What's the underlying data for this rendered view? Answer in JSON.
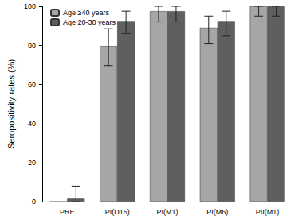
{
  "chart_data": {
    "type": "bar",
    "y_label": "Seropositivity rates (%)",
    "categories": [
      "PRE",
      "PI(D15)",
      "PI(M1)",
      "PI(M6)",
      "PII(M1)"
    ],
    "series": [
      {
        "name": "Age ≥40 years",
        "color": "#a6a6a6",
        "values": [
          0,
          79.5,
          97.5,
          89,
          100
        ],
        "error_low": [
          null,
          69.5,
          92,
          81,
          95
        ],
        "error_high": [
          null,
          88.5,
          100,
          95,
          100
        ]
      },
      {
        "name": "Age 20-30 years",
        "color": "#5f5f5f",
        "values": [
          1.5,
          92.5,
          97.5,
          92.5,
          100
        ],
        "error_low": [
          0,
          86,
          92,
          85,
          95
        ],
        "error_high": [
          8,
          97.5,
          100,
          97.5,
          100
        ]
      }
    ],
    "ylim": [
      0,
      100
    ],
    "yticks": [
      0,
      20,
      40,
      60,
      80,
      100
    ],
    "grid": false,
    "legend": "top-left"
  }
}
